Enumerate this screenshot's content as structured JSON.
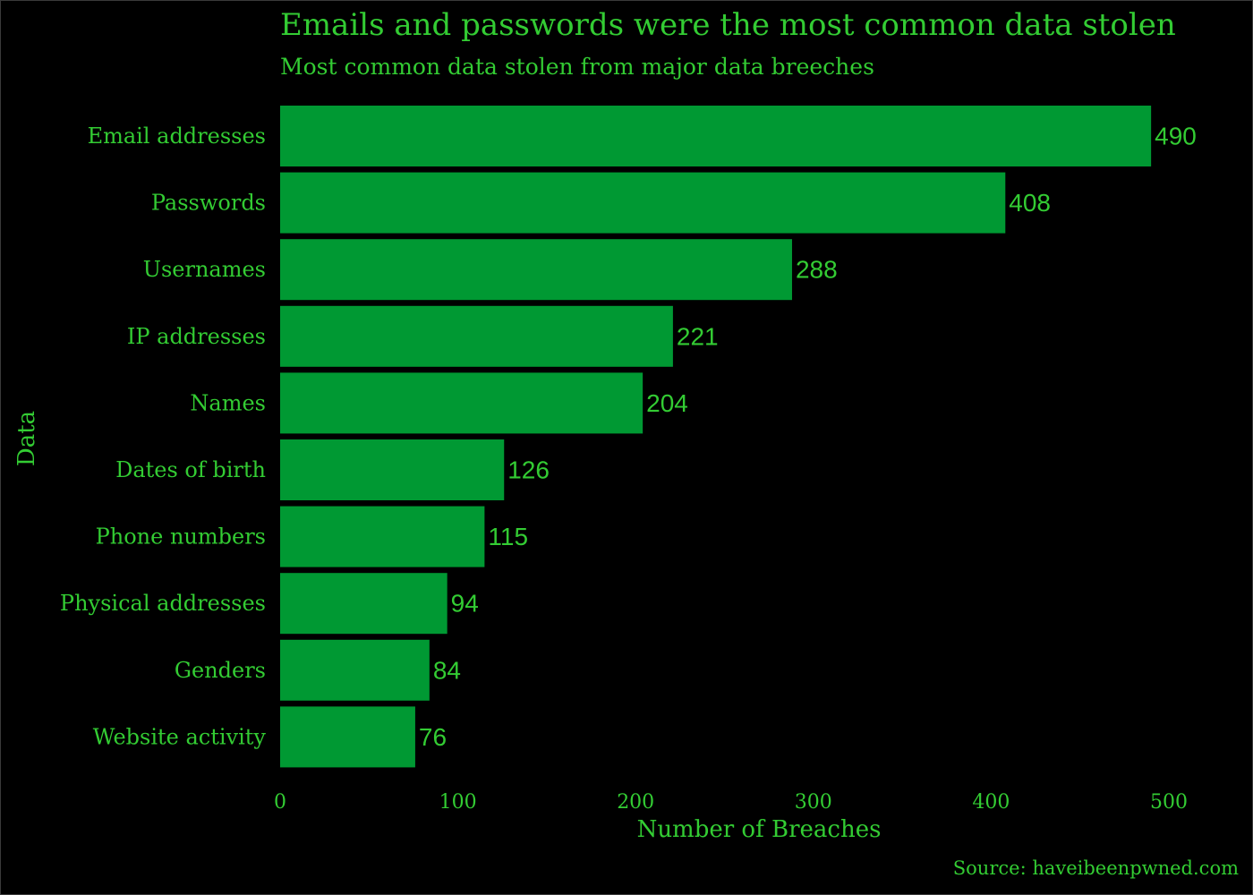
{
  "chart_data": {
    "type": "bar",
    "orientation": "horizontal",
    "title": "Emails and passwords were the most common data stolen",
    "subtitle": "Most common data stolen from major data breeches",
    "xlabel": "Number of Breaches",
    "ylabel": "Data",
    "caption": "Source: haveibeenpwned.com",
    "categories": [
      "Email addresses",
      "Passwords",
      "Usernames",
      "IP addresses",
      "Names",
      "Dates of birth",
      "Phone numbers",
      "Physical addresses",
      "Genders",
      "Website activity"
    ],
    "values": [
      490,
      408,
      288,
      221,
      204,
      126,
      115,
      94,
      84,
      76
    ],
    "data_labels": [
      "490",
      "408",
      "288",
      "221",
      "204",
      "126",
      "115",
      "94",
      "84",
      "76"
    ],
    "xlim": [
      0,
      500
    ],
    "xticks": [
      0,
      100,
      200,
      300,
      400,
      500
    ],
    "grid": false,
    "legend": "none",
    "colors": {
      "background": "#000000",
      "bar": "#009933",
      "text": "#33cc33"
    }
  }
}
